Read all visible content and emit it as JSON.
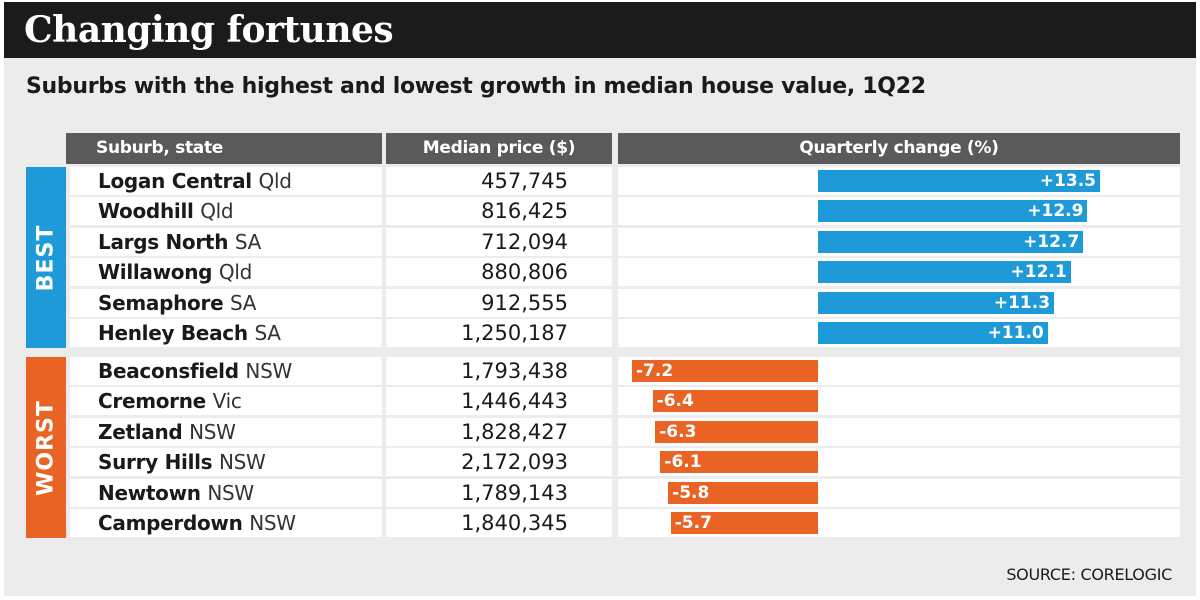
{
  "title": "Changing fortunes",
  "subtitle": "Suburbs with the highest and lowest growth in median house value, 1Q22",
  "headers": {
    "suburb": "Suburb, state",
    "price": "Median price ($)",
    "change": "Quarterly change (%)"
  },
  "groups": {
    "best": "BEST",
    "worst": "WORST"
  },
  "source": "SOURCE: CORELOGIC",
  "colors": {
    "best": "#1e9ad8",
    "worst": "#e96424",
    "header": "#5a5a5a",
    "title_bar": "#1b1b1b"
  },
  "chart_data": {
    "type": "bar",
    "title": "Changing fortunes",
    "subtitle": "Suburbs with the highest and lowest growth in median house value, 1Q22",
    "categories": [
      "Logan Central Qld",
      "Woodhill Qld",
      "Largs North SA",
      "Willawong Qld",
      "Semaphore SA",
      "Henley Beach SA",
      "Beaconsfield NSW",
      "Cremorne Vic",
      "Zetland NSW",
      "Surry Hills NSW",
      "Newtown NSW",
      "Camperdown NSW"
    ],
    "values": [
      13.5,
      12.9,
      12.7,
      12.1,
      11.3,
      11.0,
      -7.2,
      -6.4,
      -6.3,
      -6.1,
      -5.8,
      -5.7
    ],
    "xlabel": "Quarterly change (%)",
    "ylabel": "",
    "rows": [
      {
        "group": "best",
        "suburb": "Logan Central",
        "state": "Qld",
        "price": "457,745",
        "change": 13.5,
        "label": "+13.5"
      },
      {
        "group": "best",
        "suburb": "Woodhill",
        "state": "Qld",
        "price": "816,425",
        "change": 12.9,
        "label": "+12.9"
      },
      {
        "group": "best",
        "suburb": "Largs North",
        "state": "SA",
        "price": "712,094",
        "change": 12.7,
        "label": "+12.7"
      },
      {
        "group": "best",
        "suburb": "Willawong",
        "state": "Qld",
        "price": "880,806",
        "change": 12.1,
        "label": "+12.1"
      },
      {
        "group": "best",
        "suburb": "Semaphore",
        "state": "SA",
        "price": "912,555",
        "change": 11.3,
        "label": "+11.3"
      },
      {
        "group": "best",
        "suburb": "Henley Beach",
        "state": "SA",
        "price": "1,250,187",
        "change": 11.0,
        "label": "+11.0"
      },
      {
        "group": "worst",
        "suburb": "Beaconsfield",
        "state": "NSW",
        "price": "1,793,438",
        "change": -7.2,
        "label": "-7.2"
      },
      {
        "group": "worst",
        "suburb": "Cremorne",
        "state": "Vic",
        "price": "1,446,443",
        "change": -6.4,
        "label": "-6.4"
      },
      {
        "group": "worst",
        "suburb": "Zetland",
        "state": "NSW",
        "price": "1,828,427",
        "change": -6.3,
        "label": "-6.3"
      },
      {
        "group": "worst",
        "suburb": "Surry Hills",
        "state": "NSW",
        "price": "2,172,093",
        "change": -6.1,
        "label": "-6.1"
      },
      {
        "group": "worst",
        "suburb": "Newtown",
        "state": "NSW",
        "price": "1,789,143",
        "change": -5.8,
        "label": "-5.8"
      },
      {
        "group": "worst",
        "suburb": "Camperdown",
        "state": "NSW",
        "price": "1,840,345",
        "change": -5.7,
        "label": "-5.7"
      }
    ]
  }
}
